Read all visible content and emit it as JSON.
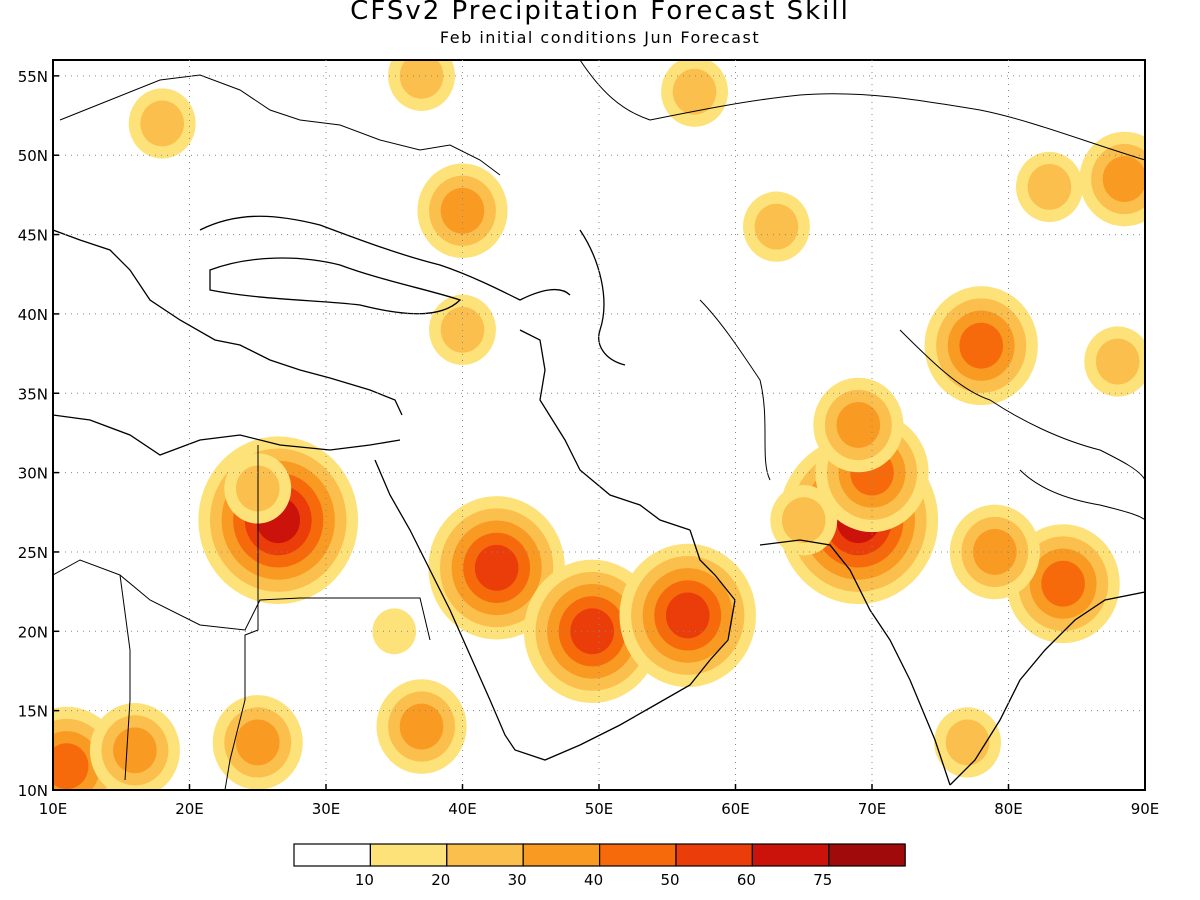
{
  "title": "CFSv2 Precipitation Forecast Skill",
  "subtitle": "Feb initial conditions  Jun Forecast",
  "map": {
    "lon_range": [
      10,
      90
    ],
    "lat_range": [
      10,
      56
    ],
    "lon_ticks": [
      {
        "value": 10,
        "label": "10E"
      },
      {
        "value": 20,
        "label": "20E"
      },
      {
        "value": 30,
        "label": "30E"
      },
      {
        "value": 40,
        "label": "40E"
      },
      {
        "value": 50,
        "label": "50E"
      },
      {
        "value": 60,
        "label": "60E"
      },
      {
        "value": 70,
        "label": "70E"
      },
      {
        "value": 80,
        "label": "80E"
      },
      {
        "value": 90,
        "label": "90E"
      }
    ],
    "lat_ticks": [
      {
        "value": 10,
        "label": "10N"
      },
      {
        "value": 15,
        "label": "15N"
      },
      {
        "value": 20,
        "label": "20N"
      },
      {
        "value": 25,
        "label": "25N"
      },
      {
        "value": 30,
        "label": "30N"
      },
      {
        "value": 35,
        "label": "35N"
      },
      {
        "value": 40,
        "label": "40N"
      },
      {
        "value": 45,
        "label": "45N"
      },
      {
        "value": 50,
        "label": "50N"
      },
      {
        "value": 55,
        "label": "55N"
      }
    ],
    "grid": "dotted"
  },
  "legend": {
    "labels": [
      "10",
      "20",
      "30",
      "40",
      "50",
      "60",
      "75"
    ],
    "colors": [
      "#ffffff",
      "#fde27a",
      "#fbbf4d",
      "#f99a22",
      "#f66a0b",
      "#ea3d09",
      "#cb130b",
      "#a00a0a"
    ]
  },
  "chart_data": {
    "type": "heatmap",
    "variable": "precipitation forecast skill",
    "levels": [
      10,
      20,
      30,
      40,
      50,
      60,
      75
    ],
    "regions": [
      {
        "lon": 69,
        "lat": 27,
        "value": 62
      },
      {
        "lon": 70,
        "lat": 30,
        "value": 45
      },
      {
        "lon": 69,
        "lat": 33,
        "value": 35
      },
      {
        "lon": 65,
        "lat": 27,
        "value": 25
      },
      {
        "lon": 42.5,
        "lat": 24,
        "value": 50
      },
      {
        "lon": 49.5,
        "lat": 20,
        "value": 55
      },
      {
        "lon": 56.5,
        "lat": 21,
        "value": 52
      },
      {
        "lon": 26.5,
        "lat": 27,
        "value": 60
      },
      {
        "lon": 25,
        "lat": 29,
        "value": 25
      },
      {
        "lon": 78,
        "lat": 38,
        "value": 48
      },
      {
        "lon": 84,
        "lat": 23,
        "value": 45
      },
      {
        "lon": 79,
        "lat": 25,
        "value": 30
      },
      {
        "lon": 77,
        "lat": 13,
        "value": 25
      },
      {
        "lon": 11,
        "lat": 11.5,
        "value": 45
      },
      {
        "lon": 16,
        "lat": 12.5,
        "value": 30
      },
      {
        "lon": 37,
        "lat": 14,
        "value": 35
      },
      {
        "lon": 25,
        "lat": 13,
        "value": 30
      },
      {
        "lon": 40,
        "lat": 39,
        "value": 25
      },
      {
        "lon": 40,
        "lat": 46.5,
        "value": 30
      },
      {
        "lon": 18,
        "lat": 52,
        "value": 25
      },
      {
        "lon": 63,
        "lat": 45.5,
        "value": 25
      },
      {
        "lon": 57,
        "lat": 54,
        "value": 25
      },
      {
        "lon": 37,
        "lat": 55,
        "value": 25
      },
      {
        "lon": 88.5,
        "lat": 48.5,
        "value": 35
      },
      {
        "lon": 83,
        "lat": 48,
        "value": 20
      },
      {
        "lon": 88,
        "lat": 37,
        "value": 20
      },
      {
        "lon": 35,
        "lat": 20,
        "value": 15
      }
    ]
  }
}
